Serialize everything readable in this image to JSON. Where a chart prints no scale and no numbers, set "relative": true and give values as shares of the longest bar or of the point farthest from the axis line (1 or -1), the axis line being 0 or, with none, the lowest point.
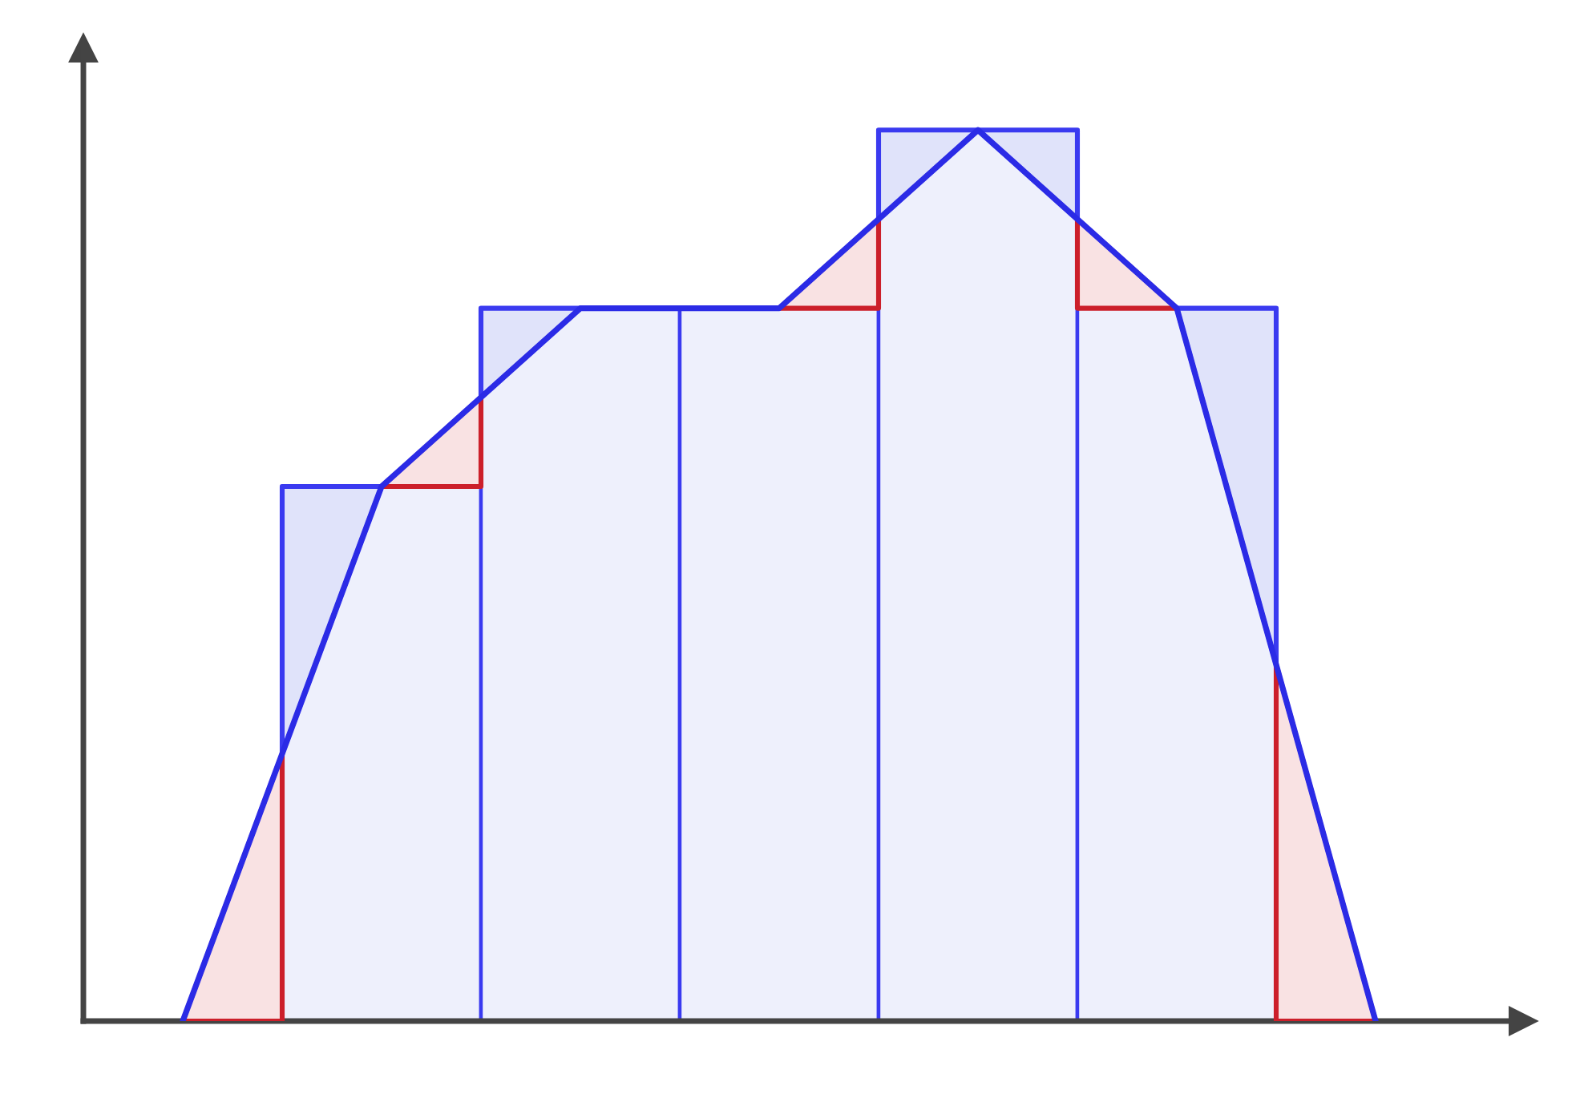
{
  "chart_data": [
    {
      "type": "bar",
      "relative": true,
      "categories": [
        null,
        null,
        null,
        null,
        null
      ],
      "color": "#eef0fc",
      "values": [
        0.6,
        0.8,
        0.8,
        1,
        0.8
      ]
    },
    {
      "type": "line",
      "relative": true,
      "categories": [
        null,
        null,
        null,
        null,
        null,
        null,
        null
      ],
      "color": "#2b2be6",
      "values": [
        0,
        0.6,
        0.8,
        0.8,
        1,
        0.8,
        0
      ]
    }
  ]
}
